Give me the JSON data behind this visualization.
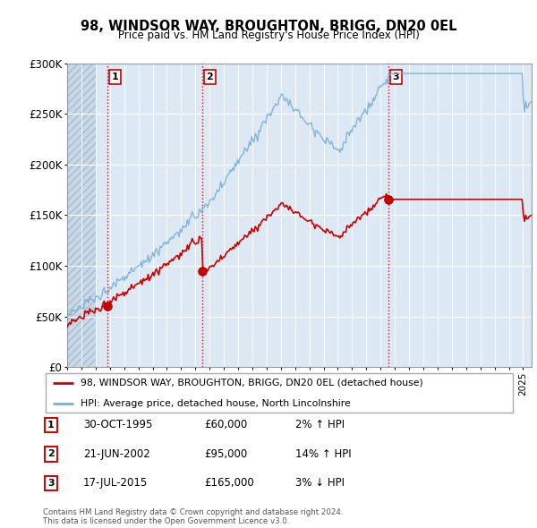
{
  "title": "98, WINDSOR WAY, BROUGHTON, BRIGG, DN20 0EL",
  "subtitle": "Price paid vs. HM Land Registry's House Price Index (HPI)",
  "ylabel_ticks": [
    "£0",
    "£50K",
    "£100K",
    "£150K",
    "£200K",
    "£250K",
    "£300K"
  ],
  "ytick_vals": [
    0,
    50000,
    100000,
    150000,
    200000,
    250000,
    300000
  ],
  "ylim": [
    0,
    300000
  ],
  "xlim_start": 1993.0,
  "xlim_end": 2025.6,
  "sale_dates_num": [
    1995.83,
    2002.47,
    2015.54
  ],
  "sale_prices": [
    60000,
    95000,
    165000
  ],
  "sale_labels": [
    "1",
    "2",
    "3"
  ],
  "red_line_color": "#cc0000",
  "blue_line_color": "#7bafd4",
  "sale_marker_color": "#cc0000",
  "vline_color": "#cc0000",
  "chart_bg_color": "#dce9f5",
  "hatch_bg_color": "#c8d8e8",
  "legend_line1": "98, WINDSOR WAY, BROUGHTON, BRIGG, DN20 0EL (detached house)",
  "legend_line2": "HPI: Average price, detached house, North Lincolnshire",
  "table_entries": [
    {
      "num": "1",
      "date": "30-OCT-1995",
      "price": "£60,000",
      "hpi": "2% ↑ HPI"
    },
    {
      "num": "2",
      "date": "21-JUN-2002",
      "price": "£95,000",
      "hpi": "14% ↑ HPI"
    },
    {
      "num": "3",
      "date": "17-JUL-2015",
      "price": "£165,000",
      "hpi": "3% ↓ HPI"
    }
  ],
  "footnote": "Contains HM Land Registry data © Crown copyright and database right 2024.\nThis data is licensed under the Open Government Licence v3.0.",
  "grid_color": "#ffffff",
  "hatch_cutoff": 1995.0,
  "hpi_seed": 12
}
